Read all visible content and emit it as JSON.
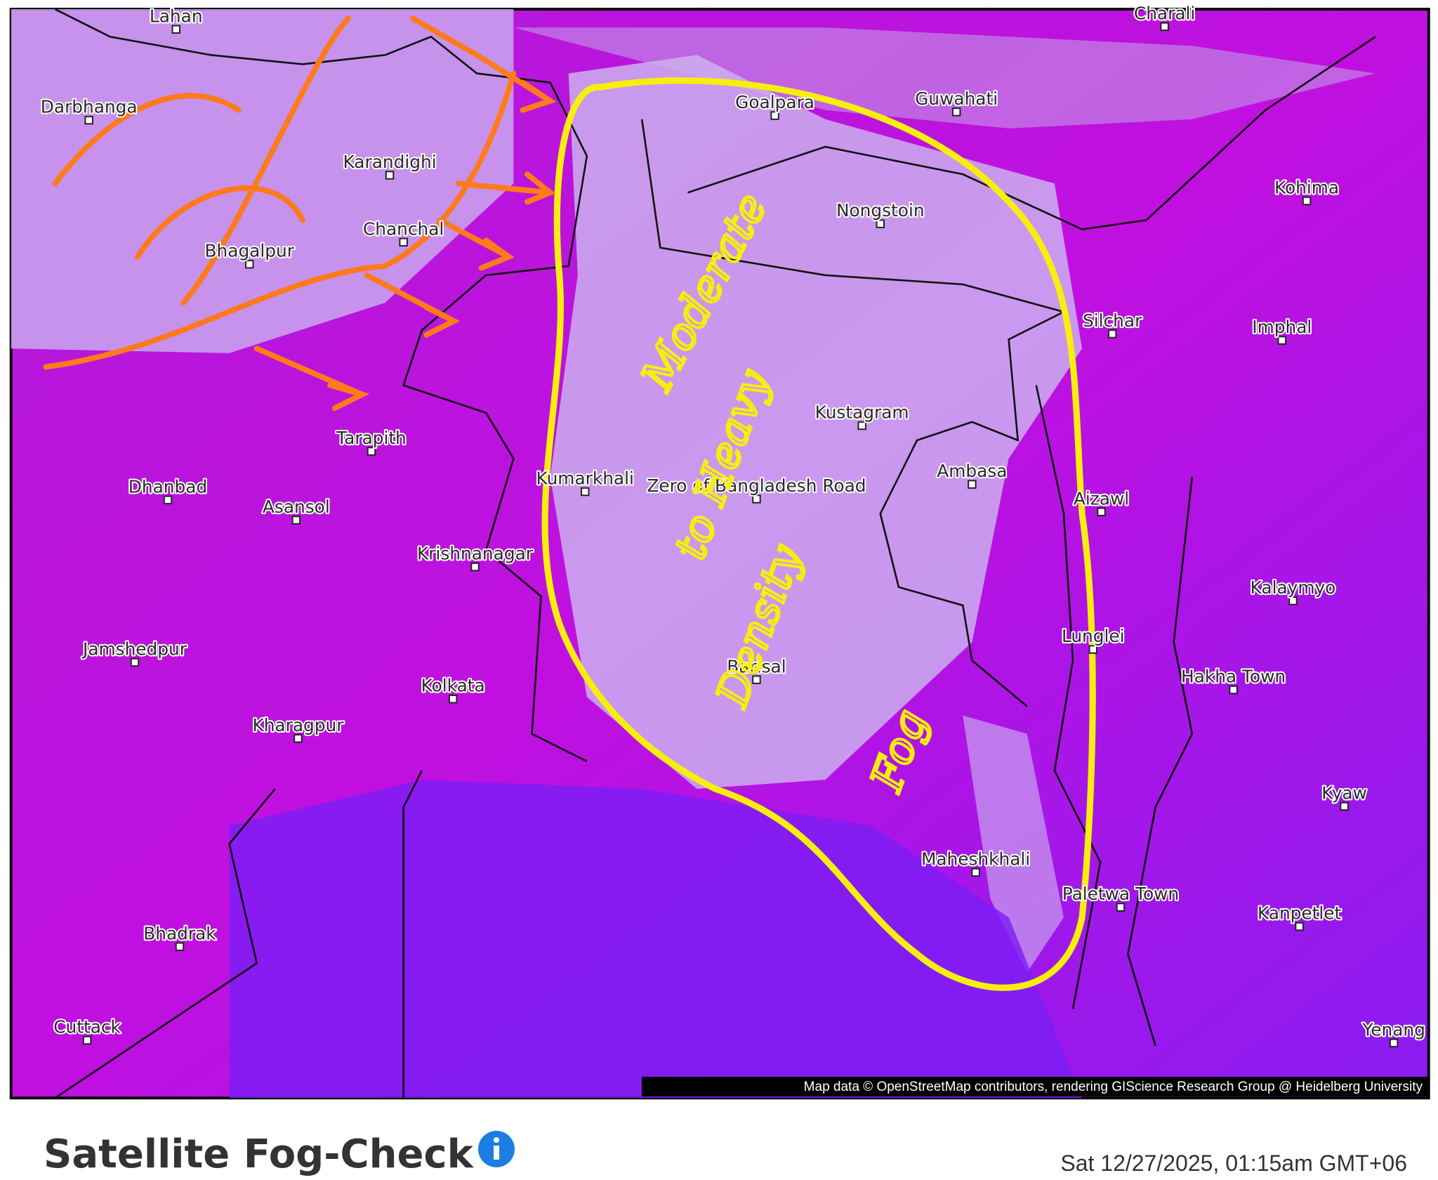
{
  "map": {
    "places": [
      "Lahan",
      "Charali",
      "Darbhanga",
      "Goalpara",
      "Guwahati",
      "Karandighi",
      "Kohima",
      "Chanchal",
      "Nongstoin",
      "Bhagalpur",
      "Silchar",
      "Imphal",
      "Kustagram",
      "Tarapith",
      "Dhanbad",
      "Asansol",
      "Kumarkhali",
      "Zero of Bangladesh Road",
      "Ambasa",
      "Aizawl",
      "Krishnanagar",
      "Kalaymyo",
      "Jamshedpur",
      "Lunglei",
      "Barisal",
      "Hakha Town",
      "Kolkata",
      "Kharagpur",
      "Kyaw",
      "Maheshkhali",
      "Paletwa Town",
      "Kanpetlet",
      "Bhadrak",
      "Cuttack",
      "Yenang"
    ],
    "attribution": "Map data © OpenStreetMap contributors, rendering GIScience Research Group @ Heidelberg University"
  },
  "annotation": {
    "lines": [
      "Moderate",
      "to Heavy",
      "Density",
      "Fog"
    ]
  },
  "header": {
    "title": "Satellite Fog-Check",
    "timestamp": "Sat 12/27/2025, 01:15am GMT+06"
  }
}
